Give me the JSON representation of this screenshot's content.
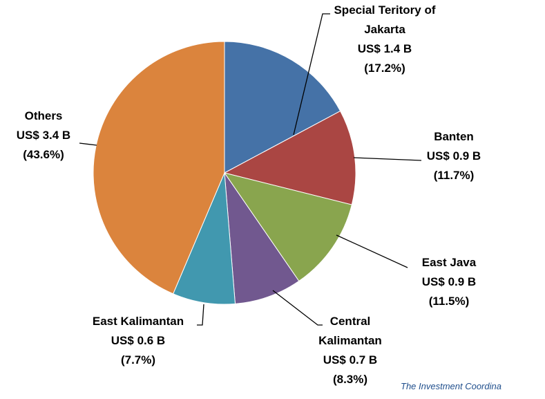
{
  "chart_data": {
    "type": "pie",
    "categories": [
      "Special Teritory of Jakarta",
      "Banten",
      "East Java",
      "Central Kalimantan",
      "East Kalimantan",
      "Others"
    ],
    "values": [
      17.2,
      11.7,
      11.5,
      8.3,
      7.7,
      43.6
    ],
    "value_labels": [
      "(17.2%)",
      "(11.7%)",
      "(11.5%)",
      "(8.3%)",
      "(7.7%)",
      "(43.6%)"
    ],
    "amounts": [
      1.4,
      0.9,
      0.9,
      0.7,
      0.6,
      3.4
    ],
    "amount_labels": [
      "US$ 1.4 B",
      "US$ 0.9 B",
      "US$ 0.9 B",
      "US$ 0.7 B",
      "US$ 0.6 B",
      "US$ 3.4 B"
    ],
    "colors": [
      "#4572a7",
      "#aa4643",
      "#89a54e",
      "#71588f",
      "#4198af",
      "#db843d"
    ],
    "source": "The Investment Coordina"
  }
}
